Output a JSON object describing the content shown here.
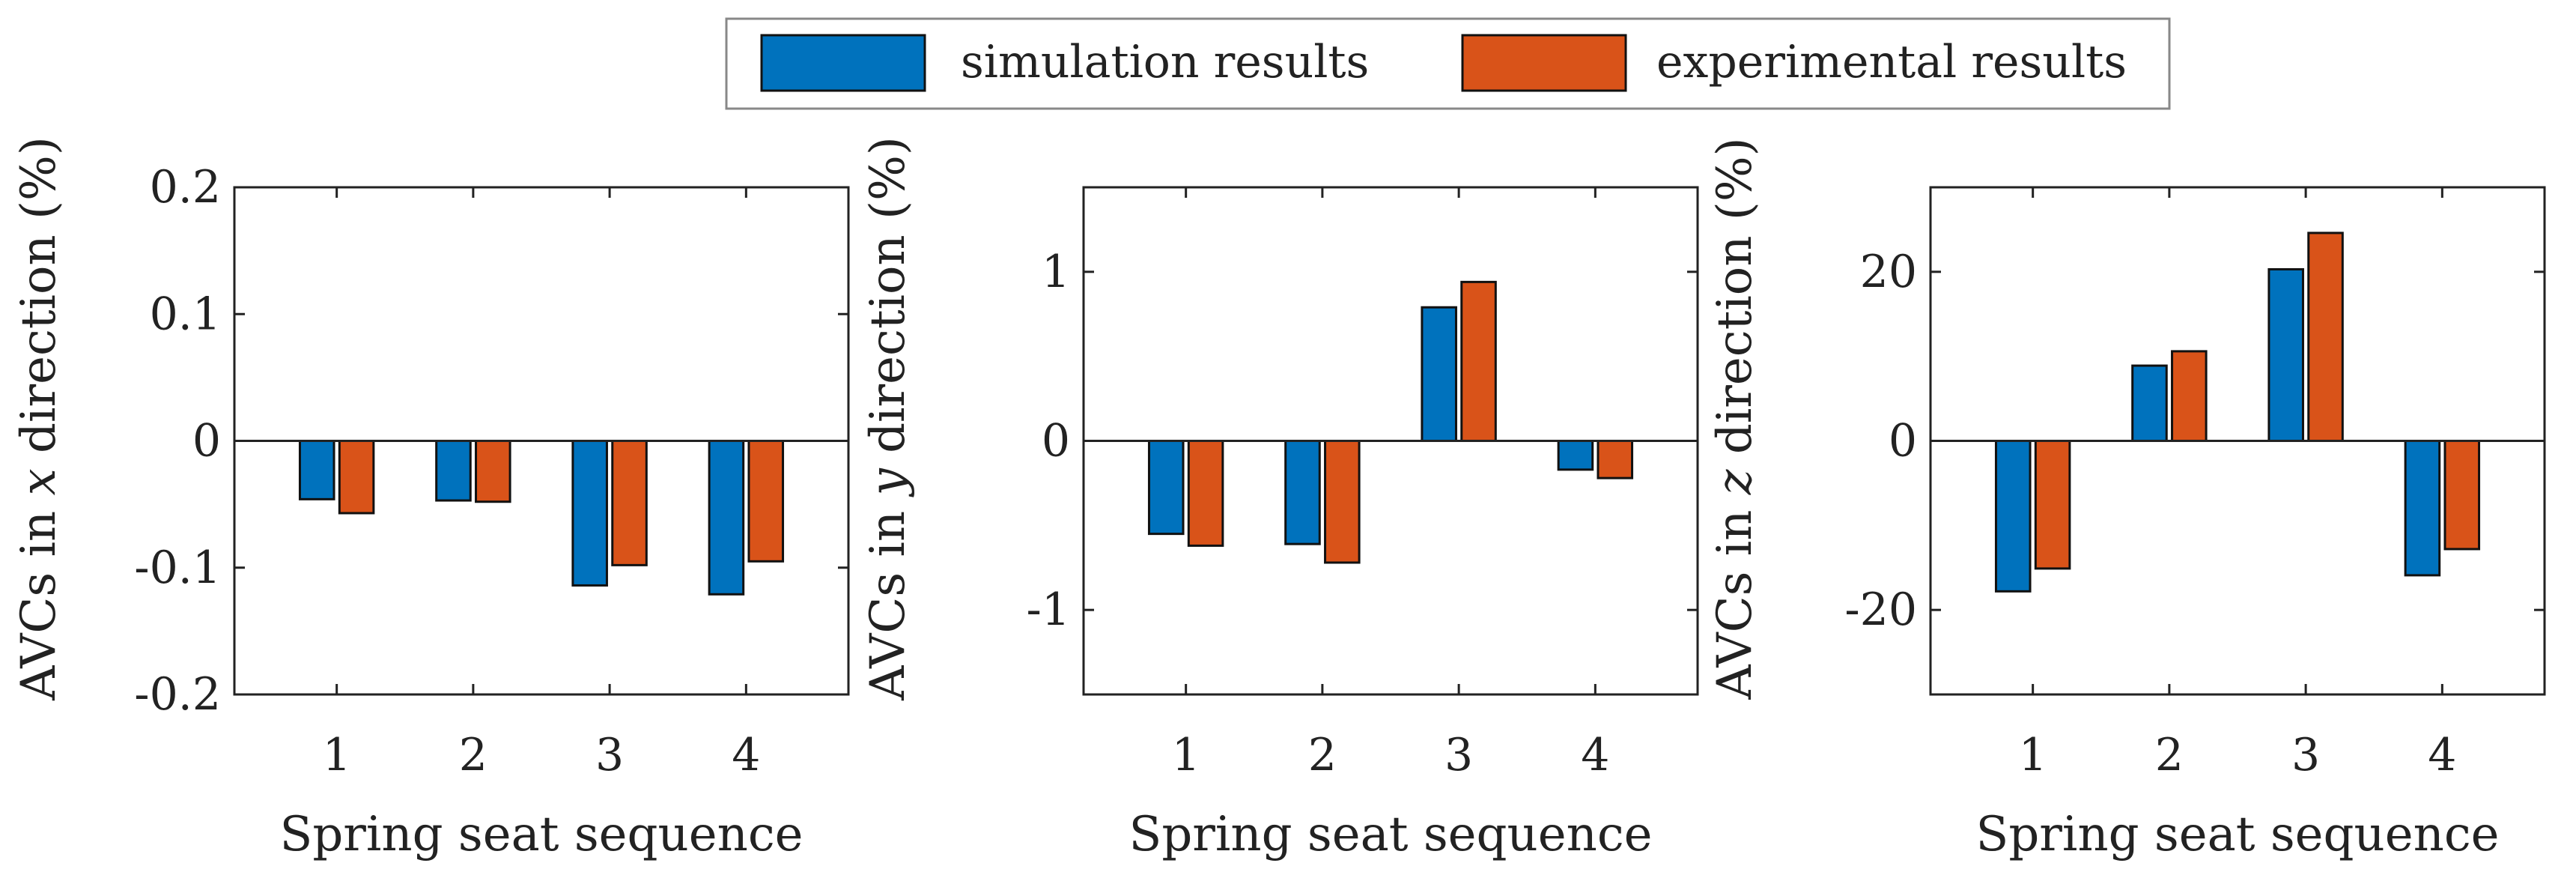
{
  "legend": {
    "entries": [
      {
        "label": "simulation results",
        "color": "#0072BD"
      },
      {
        "label": "experimental results",
        "color": "#D95319"
      }
    ]
  },
  "colors": {
    "axis": "#222222",
    "simulation": "#0072BD",
    "experimental": "#D95319",
    "legend_border": "#888888"
  },
  "chart_data": [
    {
      "type": "bar",
      "title": "",
      "xlabel": "Spring seat sequence",
      "ylabel_prefix": "AVCs in ",
      "ylabel_var": "x",
      "ylabel_suffix": " direction (%)",
      "categories": [
        "1",
        "2",
        "3",
        "4"
      ],
      "ylim": [
        -0.2,
        0.2
      ],
      "yticks": [
        -0.2,
        -0.1,
        0,
        0.1,
        0.2
      ],
      "ytick_labels": [
        "-0.2",
        "-0.1",
        "0",
        "0.1",
        "0.2"
      ],
      "grid": false,
      "series": [
        {
          "name": "simulation results",
          "values": [
            -0.046,
            -0.047,
            -0.114,
            -0.121
          ]
        },
        {
          "name": "experimental results",
          "values": [
            -0.057,
            -0.048,
            -0.098,
            -0.095
          ]
        }
      ]
    },
    {
      "type": "bar",
      "title": "",
      "xlabel": "Spring seat sequence",
      "ylabel_prefix": "AVCs in ",
      "ylabel_var": "y",
      "ylabel_suffix": " direction (%)",
      "categories": [
        "1",
        "2",
        "3",
        "4"
      ],
      "ylim": [
        -1.5,
        1.5
      ],
      "yticks": [
        -1,
        0,
        1
      ],
      "ytick_labels": [
        "-1",
        "0",
        "1"
      ],
      "grid": false,
      "series": [
        {
          "name": "simulation results",
          "values": [
            -0.55,
            -0.61,
            0.79,
            -0.17
          ]
        },
        {
          "name": "experimental results",
          "values": [
            -0.62,
            -0.72,
            0.94,
            -0.22
          ]
        }
      ]
    },
    {
      "type": "bar",
      "title": "",
      "xlabel": "Spring seat sequence",
      "ylabel_prefix": "AVCs in ",
      "ylabel_var": "z",
      "ylabel_suffix": " direction (%)",
      "categories": [
        "1",
        "2",
        "3",
        "4"
      ],
      "ylim": [
        -30,
        30
      ],
      "yticks": [
        -20,
        0,
        20
      ],
      "ytick_labels": [
        "-20",
        "0",
        "20"
      ],
      "grid": false,
      "series": [
        {
          "name": "simulation results",
          "values": [
            -17.8,
            8.9,
            20.3,
            -15.9
          ]
        },
        {
          "name": "experimental results",
          "values": [
            -15.1,
            10.6,
            24.6,
            -12.8
          ]
        }
      ]
    }
  ]
}
